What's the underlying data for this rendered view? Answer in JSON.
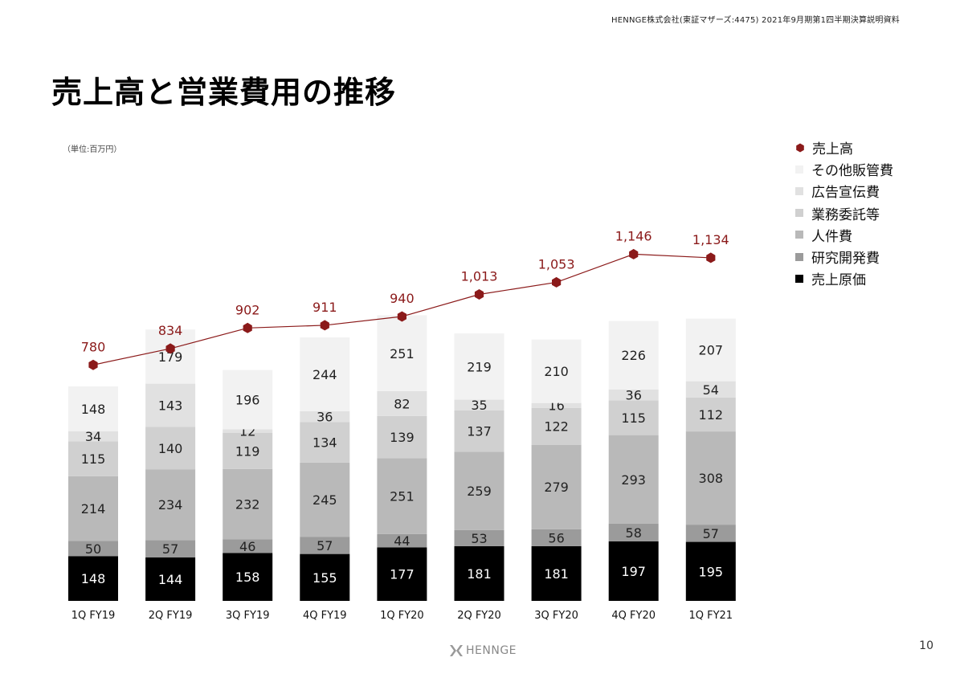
{
  "header": {
    "note": "HENNGE株式会社(東証マザーズ:4475) 2021年9月期第1四半期決算説明資料"
  },
  "title": "売上高と営業費用の推移",
  "unit": "（単位:百万円）",
  "footer": {
    "logo_text": "HENNGE",
    "page_number": "10"
  },
  "colors": {
    "revenue": "#8b1a1a",
    "cogs": "#000000",
    "rnd": "#9b9b9b",
    "personnel": "#b9b9b9",
    "outsourcing": "#d0d0d0",
    "advertising": "#e1e1e1",
    "other_sga": "#f2f2f2"
  },
  "chart_data": {
    "type": "bar",
    "stacked": true,
    "categories": [
      "1Q FY19",
      "2Q FY19",
      "3Q FY19",
      "4Q FY19",
      "1Q FY20",
      "2Q FY20",
      "3Q FY20",
      "4Q FY20",
      "1Q FY21"
    ],
    "series": [
      {
        "key": "cogs",
        "name": "売上原価",
        "values": [
          148,
          144,
          158,
          155,
          177,
          181,
          181,
          197,
          195
        ]
      },
      {
        "key": "rnd",
        "name": "研究開発費",
        "values": [
          50,
          57,
          46,
          57,
          44,
          53,
          56,
          58,
          57
        ]
      },
      {
        "key": "personnel",
        "name": "人件費",
        "values": [
          214,
          234,
          232,
          245,
          251,
          259,
          279,
          293,
          308
        ]
      },
      {
        "key": "outsourcing",
        "name": "業務委託等",
        "values": [
          115,
          140,
          119,
          134,
          139,
          137,
          122,
          115,
          112
        ]
      },
      {
        "key": "advertising",
        "name": "広告宣伝費",
        "values": [
          34,
          143,
          12,
          36,
          82,
          35,
          16,
          36,
          54
        ]
      },
      {
        "key": "other_sga",
        "name": "その他販管費",
        "values": [
          148,
          179,
          196,
          244,
          251,
          219,
          210,
          226,
          207
        ]
      }
    ],
    "line_series": {
      "key": "revenue",
      "name": "売上高",
      "values": [
        780,
        834,
        902,
        911,
        940,
        1013,
        1053,
        1146,
        1134
      ],
      "labels": [
        "780",
        "834",
        "902",
        "911",
        "940",
        "1,013",
        "1,053",
        "1,146",
        "1,134"
      ]
    },
    "legend_order": [
      "revenue",
      "other_sga",
      "advertising",
      "outsourcing",
      "personnel",
      "rnd",
      "cogs"
    ],
    "legend_placement": "right",
    "grid": false
  }
}
